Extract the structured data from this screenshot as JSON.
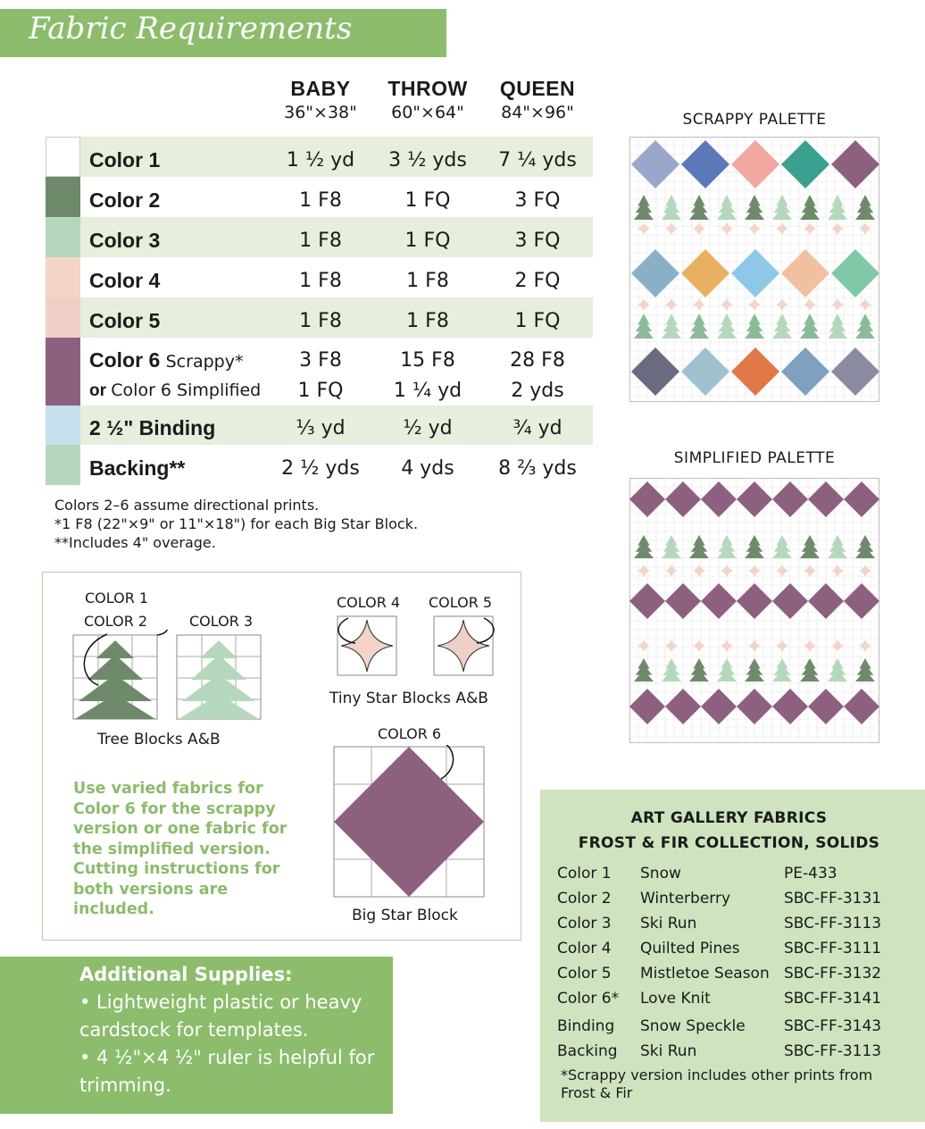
{
  "header": {
    "title": "Fabric Requirements"
  },
  "sizes": [
    {
      "name": "BABY",
      "dims": "36\"×38\""
    },
    {
      "name": "THROW",
      "dims": "60\"×64\""
    },
    {
      "name": "QUEEN",
      "dims": "84\"×96\""
    }
  ],
  "rows": [
    {
      "label": "Color 1",
      "values": [
        "1 ½ yd",
        "3 ½ yds",
        "7 ¼ yds"
      ],
      "swatch": "#ffffff"
    },
    {
      "label": "Color 2",
      "values": [
        "1 F8",
        "1 FQ",
        "3 FQ"
      ],
      "swatch": "#6e8a6a"
    },
    {
      "label": "Color 3",
      "values": [
        "1 F8",
        "1 FQ",
        "3 FQ"
      ],
      "swatch": "#b5d8bc"
    },
    {
      "label": "Color 4",
      "values": [
        "1 F8",
        "1 F8",
        "2 FQ"
      ],
      "swatch": "#f4d4c8"
    },
    {
      "label": "Color 5",
      "values": [
        "1 F8",
        "1 F8",
        "1 FQ"
      ],
      "swatch": "#efd0c6"
    },
    {
      "label": "Color 6",
      "label_suffix": "Scrappy*",
      "values": [
        "3 F8",
        "15 F8",
        "28 F8"
      ],
      "alt_prefix": "or",
      "alt_label": "Color 6 Simplified",
      "alt_values": [
        "1 FQ",
        "1 ¼ yd",
        "2 yds"
      ],
      "swatch": "#8e6080"
    },
    {
      "label": "2 ½\" Binding",
      "values": [
        "⅓ yd",
        "½ yd",
        "¾ yd"
      ],
      "swatch": "#c6e0ee"
    },
    {
      "label": "Backing**",
      "values": [
        "2 ½ yds",
        "4 yds",
        "8 ⅔ yds"
      ],
      "swatch": "#b5d8bc"
    }
  ],
  "notes": [
    "Colors 2–6 assume directional prints.",
    "*1 F8 (22\"×9\" or 11\"×18\") for each Big Star Block.",
    "**Includes 4\" overage."
  ],
  "diagrams": {
    "color1": "COLOR 1",
    "color2": "COLOR 2",
    "color3": "COLOR 3",
    "color4": "COLOR 4",
    "color5": "COLOR 5",
    "color6": "COLOR 6",
    "tree_caption": "Tree Blocks A&B",
    "tiny_caption": "Tiny Star Blocks A&B",
    "big_caption": "Big Star Block",
    "green_note": "Use varied fabrics for Color 6 for the scrappy version or one fabric for the simplified version. Cutting instructions for both versions are included."
  },
  "supplies": {
    "heading": "Additional Supplies:",
    "items": [
      "• Lightweight plastic or heavy cardstock for templates.",
      "• 4 ½\"×4 ½\" ruler is helpful for trimming."
    ]
  },
  "palettes": {
    "scrappy": "SCRAPPY PALETTE",
    "simplified": "SIMPLIFIED PALETTE"
  },
  "fabrics": {
    "heading1": "ART GALLERY FABRICS",
    "heading2": "FROST & FIR COLLECTION, SOLIDS",
    "items": [
      {
        "role": "Color 1",
        "name": "Snow",
        "code": "PE-433"
      },
      {
        "role": "Color 2",
        "name": "Winterberry",
        "code": "SBC-FF-3131"
      },
      {
        "role": "Color 3",
        "name": "Ski Run",
        "code": "SBC-FF-3113"
      },
      {
        "role": "Color 4",
        "name": "Quilted Pines",
        "code": "SBC-FF-3111"
      },
      {
        "role": "Color 5",
        "name": "Mistletoe Season",
        "code": "SBC-FF-3132"
      },
      {
        "role": "Color 6*",
        "name": "Love Knit",
        "code": "SBC-FF-3141"
      },
      {
        "role": "Binding",
        "name": "Snow Speckle",
        "code": "SBC-FF-3143"
      },
      {
        "role": "Backing",
        "name": "Ski Run",
        "code": "SBC-FF-3113"
      }
    ],
    "footnote": "*Scrappy version includes other prints from Frost & Fir"
  },
  "colors": {
    "accent_green": "#8cbc6c",
    "row_shade": "#e6eedc",
    "tree_dark": "#6e8a6a",
    "tree_light": "#b5d8bc",
    "star_plum": "#8e6080",
    "tiny_star": "#f4d4c8"
  }
}
